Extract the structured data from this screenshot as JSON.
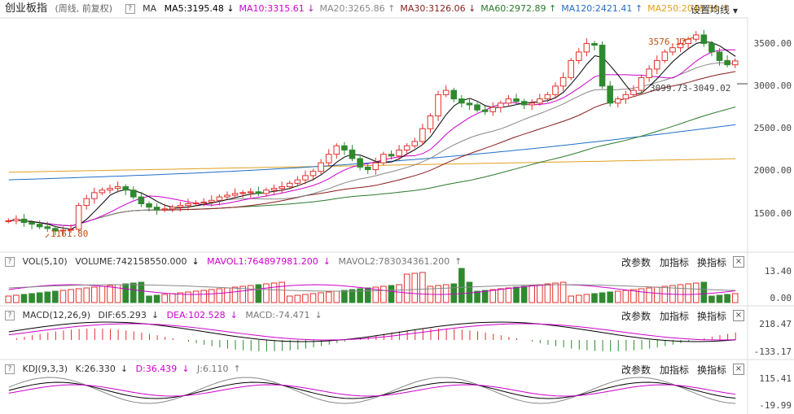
{
  "colors": {
    "up": "#e3302c",
    "down": "#2f8a2f",
    "ma5": "#000000",
    "ma10": "#cc00cc",
    "ma20": "#888888",
    "ma30": "#8a1c1c",
    "ma60": "#2a7a2a",
    "ma120": "#1f6fc6",
    "ma250": "#e0a020"
  },
  "main": {
    "title": "创业板指",
    "subtitle": "(周线, 前复权)",
    "indicator": "MA",
    "ma": [
      {
        "label": "MA5:3195.48",
        "arrow": "↓",
        "color": "#000000"
      },
      {
        "label": "MA10:3315.61",
        "arrow": "↓",
        "color": "#cc00cc"
      },
      {
        "label": "MA20:3265.86",
        "arrow": "↑",
        "color": "#888888"
      },
      {
        "label": "MA30:3126.06",
        "arrow": "↓",
        "color": "#8a1c1c"
      },
      {
        "label": "MA60:2972.89",
        "arrow": "↑",
        "color": "#2a7a2a"
      },
      {
        "label": "MA120:2421.41",
        "arrow": "↑",
        "color": "#1f6fc6"
      },
      {
        "label": "MA250:2048.36",
        "arrow": "↑",
        "color": "#e0a020"
      }
    ],
    "settings_label": "设置均线",
    "y_ticks": [
      "3500.00",
      "3000.00",
      "2500.00",
      "2000.00",
      "1500.00"
    ],
    "high_label": "3576.12",
    "low_label": "1161.80",
    "price_label": "3099.73-3049.02"
  },
  "vol": {
    "label": "VOL(5,10)",
    "volume": "VOLUME:742158550.000",
    "mavol1": "MAVOL1:764897981.200",
    "mavol2": "MAVOL2:783034361.200",
    "y_ticks": [
      "13.40",
      "0.00"
    ]
  },
  "macd": {
    "label": "MACD(12,26,9)",
    "dif": "DIF:65.293",
    "dea": "DEA:102.528",
    "macd": "MACD:-74.471",
    "y_ticks": [
      "218.47",
      "-133.17"
    ]
  },
  "kdj": {
    "label": "KDJ(9,3,3)",
    "k": "K:26.330",
    "d": "D:36.439",
    "j": "J:6.110",
    "y_ticks": [
      "115.41",
      "-19.99"
    ]
  },
  "actions": {
    "change_params": "改参数",
    "add_indicator": "加指标",
    "switch_indicator": "换指标",
    "close": "×"
  },
  "chart_data": {
    "type": "candlestick",
    "title": "创业板指 (周线, 前复权)",
    "y_range": [
      1161.8,
      3576.12
    ],
    "y_ticks": [
      1500,
      2000,
      2500,
      3000,
      3500
    ],
    "annotations": [
      {
        "text": "3576.12",
        "type": "high"
      },
      {
        "text": "1161.80",
        "type": "low"
      }
    ],
    "series_close": [
      1320,
      1340,
      1300,
      1280,
      1250,
      1230,
      1200,
      1210,
      1220,
      1500,
      1580,
      1650,
      1680,
      1700,
      1720,
      1680,
      1600,
      1520,
      1480,
      1450,
      1460,
      1480,
      1500,
      1520,
      1530,
      1540,
      1560,
      1600,
      1620,
      1640,
      1650,
      1660,
      1640,
      1680,
      1700,
      1720,
      1760,
      1800,
      1850,
      1900,
      2000,
      2100,
      2200,
      2150,
      2050,
      1950,
      1920,
      2000,
      2100,
      2080,
      2150,
      2200,
      2250,
      2400,
      2550,
      2800,
      2850,
      2750,
      2700,
      2680,
      2620,
      2600,
      2650,
      2700,
      2750,
      2720,
      2680,
      2700,
      2750,
      2800,
      2900,
      3000,
      3200,
      3300,
      3400,
      3380,
      2900,
      2700,
      2750,
      2800,
      2850,
      3000,
      3100,
      3200,
      3300,
      3350,
      3400,
      3450,
      3500,
      3400,
      3300,
      3200,
      3150,
      3195
    ]
  }
}
